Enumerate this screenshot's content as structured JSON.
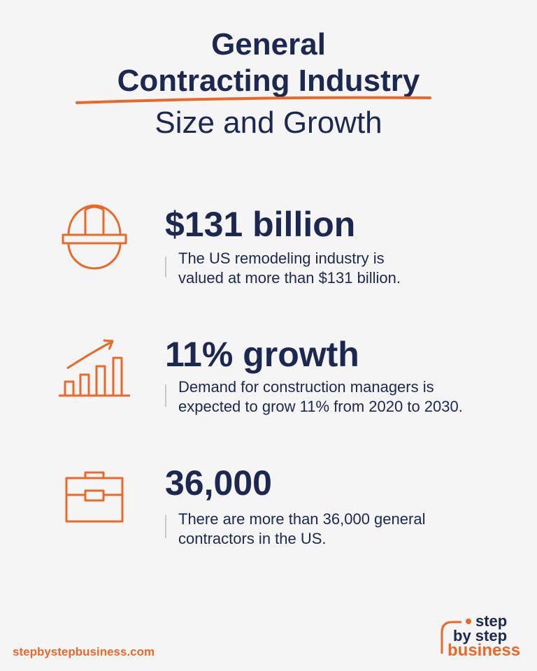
{
  "header": {
    "title_lines": [
      "General",
      "Contracting Industry"
    ],
    "subtitle": "Size and Growth"
  },
  "stats": [
    {
      "headline": "$131 billion",
      "description": [
        "The US remodeling industry is",
        "valued at more than $131 billion."
      ]
    },
    {
      "headline": "11% growth",
      "description": [
        "Demand for construction managers is",
        "expected to grow 11% from 2020 to 2030."
      ]
    },
    {
      "headline": "36,000",
      "description": [
        "There are more than 36,000 general",
        "contractors in the US."
      ]
    }
  ],
  "footer": {
    "website": "stepbystepbusiness.com",
    "logo": [
      "step",
      "by step",
      "business"
    ]
  }
}
